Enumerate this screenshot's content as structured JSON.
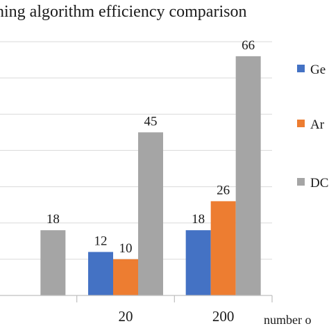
{
  "chart_data": {
    "type": "bar",
    "title": "ning algorithm efficiency comparison",
    "xlabel": "number o",
    "ylabel": "",
    "categories": [
      "",
      "20",
      "200"
    ],
    "series": [
      {
        "name": "Ge",
        "color": "#4472C4",
        "values": [
          null,
          12,
          18
        ]
      },
      {
        "name": "Ar",
        "color": "#ED7D31",
        "values": [
          null,
          10,
          26
        ]
      },
      {
        "name": "DC",
        "color": "#A5A5A5",
        "values": [
          18,
          45,
          66
        ]
      }
    ],
    "ylim": [
      0,
      70
    ],
    "grid": true,
    "legend_position": "right"
  }
}
